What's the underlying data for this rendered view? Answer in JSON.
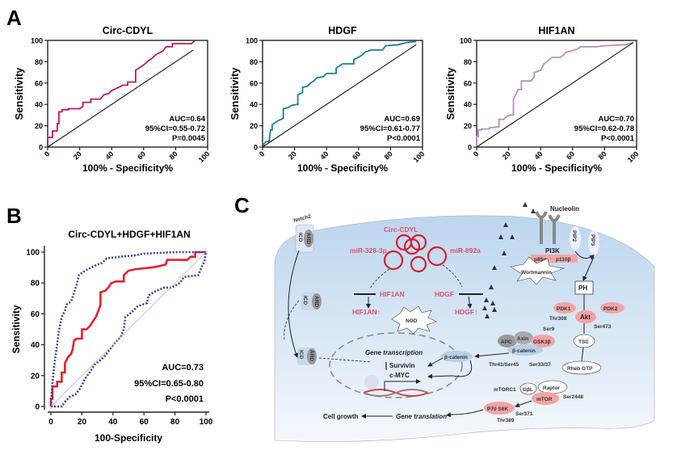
{
  "panel_labels": {
    "a": "A",
    "b": "B",
    "c": "C"
  },
  "chart_data": [
    {
      "type": "line",
      "title": "Circ-CDYL",
      "xlabel": "100% - Specificity%",
      "ylabel": "Sensitivity",
      "xlim": [
        0,
        100
      ],
      "ylim": [
        0,
        100
      ],
      "xticks": [
        "0",
        "20",
        "40",
        "60",
        "80",
        "100"
      ],
      "yticks": [
        "0",
        "20",
        "40",
        "60",
        "80",
        "100"
      ],
      "stats": [
        "AUC=0.64",
        "95%CI=0.55-0.72",
        "P=0.0045"
      ],
      "color": "#c2185b",
      "series": [
        {
          "style": "step",
          "points": [
            [
              0,
              0
            ],
            [
              0,
              9
            ],
            [
              3,
              9
            ],
            [
              3,
              15
            ],
            [
              6,
              15
            ],
            [
              6,
              22
            ],
            [
              7,
              22
            ],
            [
              7,
              33
            ],
            [
              9,
              33
            ],
            [
              9,
              35
            ],
            [
              13,
              35
            ],
            [
              13,
              36
            ],
            [
              20,
              36
            ],
            [
              22,
              38
            ],
            [
              22,
              42
            ],
            [
              27,
              42
            ],
            [
              27,
              45
            ],
            [
              33,
              45
            ],
            [
              35,
              49
            ],
            [
              38,
              50
            ],
            [
              40,
              53
            ],
            [
              43,
              55
            ],
            [
              47,
              58
            ],
            [
              50,
              58
            ],
            [
              50,
              61
            ],
            [
              55,
              61
            ],
            [
              55,
              72
            ],
            [
              57,
              74
            ],
            [
              60,
              77
            ],
            [
              63,
              81
            ],
            [
              65,
              83
            ],
            [
              68,
              87
            ],
            [
              72,
              90
            ],
            [
              74,
              94
            ],
            [
              78,
              94
            ],
            [
              78,
              97
            ],
            [
              90,
              97
            ],
            [
              92,
              100
            ]
          ]
        },
        {
          "style": "reference",
          "points": [
            [
              0,
              0
            ],
            [
              91,
              91
            ]
          ]
        }
      ]
    },
    {
      "type": "line",
      "title": "HDGF",
      "xlabel": "100% - Specificity%",
      "ylabel": "Sensitivity",
      "xlim": [
        0,
        100
      ],
      "ylim": [
        0,
        100
      ],
      "xticks": [
        "0",
        "20",
        "40",
        "60",
        "80",
        "100"
      ],
      "yticks": [
        "0",
        "20",
        "40",
        "60",
        "80",
        "100"
      ],
      "stats": [
        "AUC=0.69",
        "95%CI=0.61-0.77",
        "P<0.0001"
      ],
      "color": "#1a7f96",
      "series": [
        {
          "style": "step",
          "points": [
            [
              0,
              0
            ],
            [
              1,
              3
            ],
            [
              2,
              5
            ],
            [
              4,
              5
            ],
            [
              5,
              16
            ],
            [
              6,
              16
            ],
            [
              6,
              21
            ],
            [
              8,
              23
            ],
            [
              10,
              25
            ],
            [
              13,
              27
            ],
            [
              13,
              36
            ],
            [
              16,
              37
            ],
            [
              18,
              39
            ],
            [
              22,
              40
            ],
            [
              22,
              49
            ],
            [
              25,
              51
            ],
            [
              25,
              56
            ],
            [
              28,
              57
            ],
            [
              30,
              60
            ],
            [
              32,
              62
            ],
            [
              34,
              65
            ],
            [
              38,
              66
            ],
            [
              40,
              69
            ],
            [
              46,
              69
            ],
            [
              46,
              74
            ],
            [
              50,
              78
            ],
            [
              57,
              78
            ],
            [
              57,
              82
            ],
            [
              62,
              86
            ],
            [
              64,
              89
            ],
            [
              68,
              91
            ],
            [
              75,
              91
            ],
            [
              77,
              95
            ],
            [
              85,
              96
            ],
            [
              90,
              98
            ],
            [
              96,
              99
            ]
          ]
        },
        {
          "style": "reference",
          "points": [
            [
              0,
              0
            ],
            [
              96,
              96
            ]
          ]
        }
      ]
    },
    {
      "type": "line",
      "title": "HIF1AN",
      "xlabel": "100% - Specificity%",
      "ylabel": "Sensitivity",
      "xlim": [
        0,
        100
      ],
      "ylim": [
        0,
        100
      ],
      "xticks": [
        "0",
        "20",
        "40",
        "60",
        "80",
        "100"
      ],
      "yticks": [
        "0",
        "20",
        "40",
        "60",
        "80",
        "100"
      ],
      "stats": [
        "AUC=0.70",
        "95%CI=0.62-0.78",
        "P<0.0001"
      ],
      "color": "#b58fc0",
      "series": [
        {
          "style": "step",
          "points": [
            [
              0,
              0
            ],
            [
              0,
              10
            ],
            [
              1,
              10
            ],
            [
              1,
              16
            ],
            [
              3,
              16
            ],
            [
              3,
              17
            ],
            [
              8,
              17
            ],
            [
              8,
              18
            ],
            [
              14,
              19
            ],
            [
              14,
              26
            ],
            [
              17,
              26
            ],
            [
              19,
              29
            ],
            [
              21,
              30
            ],
            [
              23,
              30
            ],
            [
              23,
              45
            ],
            [
              25,
              51
            ],
            [
              26,
              54
            ],
            [
              28,
              54
            ],
            [
              28,
              62
            ],
            [
              34,
              62
            ],
            [
              36,
              66
            ],
            [
              36,
              70
            ],
            [
              40,
              72
            ],
            [
              42,
              78
            ],
            [
              44,
              80
            ],
            [
              47,
              84
            ],
            [
              52,
              84
            ],
            [
              54,
              86
            ],
            [
              56,
              89
            ],
            [
              59,
              90
            ],
            [
              63,
              92
            ],
            [
              65,
              94
            ],
            [
              75,
              94
            ],
            [
              80,
              95
            ],
            [
              93,
              96
            ],
            [
              98,
              98
            ]
          ]
        },
        {
          "style": "reference",
          "points": [
            [
              0,
              0
            ],
            [
              98,
              98
            ]
          ]
        }
      ]
    },
    {
      "type": "line",
      "title": "Circ-CDYL+HDGF+HIF1AN",
      "xlabel": "100-Specificity",
      "ylabel": "Sensitivity",
      "xlim": [
        0,
        100
      ],
      "ylim": [
        0,
        100
      ],
      "xticks": [
        "0",
        "20",
        "40",
        "60",
        "80",
        "100"
      ],
      "yticks": [
        "0",
        "20",
        "40",
        "60",
        "80",
        "100"
      ],
      "stats": [
        "AUC=0.73",
        "95%CI=0.65-0.80",
        "P<0.0001"
      ],
      "color": "#e8202a",
      "ci_color": "#3b3fa0",
      "series": [
        {
          "style": "step",
          "points": [
            [
              0,
              0
            ],
            [
              0,
              5
            ],
            [
              1,
              5
            ],
            [
              1,
              13
            ],
            [
              4,
              13
            ],
            [
              4,
              16
            ],
            [
              7,
              16
            ],
            [
              7,
              22
            ],
            [
              9,
              22
            ],
            [
              9,
              28
            ],
            [
              11,
              32
            ],
            [
              13,
              34
            ],
            [
              14,
              37
            ],
            [
              15,
              43
            ],
            [
              17,
              44
            ],
            [
              20,
              44
            ],
            [
              20,
              50
            ],
            [
              23,
              50
            ],
            [
              25,
              52
            ],
            [
              27,
              55
            ],
            [
              29,
              58
            ],
            [
              31,
              63
            ],
            [
              32,
              66
            ],
            [
              32,
              74
            ],
            [
              35,
              75
            ],
            [
              37,
              77
            ],
            [
              39,
              80
            ],
            [
              42,
              81
            ],
            [
              47,
              81
            ],
            [
              47,
              85
            ],
            [
              50,
              88
            ],
            [
              55,
              89
            ],
            [
              65,
              90
            ],
            [
              70,
              91
            ],
            [
              74,
              92
            ],
            [
              75,
              95
            ],
            [
              88,
              95
            ],
            [
              90,
              97
            ],
            [
              93,
              97
            ],
            [
              93,
              100
            ],
            [
              100,
              100
            ]
          ]
        },
        {
          "style": "ci-upper",
          "points": [
            [
              0,
              0
            ],
            [
              1,
              15
            ],
            [
              2,
              25
            ],
            [
              3,
              33
            ],
            [
              4,
              40
            ],
            [
              5,
              48
            ],
            [
              7,
              58
            ],
            [
              9,
              62
            ],
            [
              10,
              66
            ],
            [
              13,
              68
            ],
            [
              15,
              74
            ],
            [
              17,
              80
            ],
            [
              18,
              85
            ],
            [
              22,
              88
            ],
            [
              26,
              90
            ],
            [
              30,
              92
            ],
            [
              33,
              93
            ],
            [
              36,
              96
            ],
            [
              45,
              97
            ],
            [
              55,
              98
            ],
            [
              60,
              99
            ],
            [
              80,
              100
            ],
            [
              100,
              100
            ]
          ]
        },
        {
          "style": "ci-lower",
          "points": [
            [
              0,
              0
            ],
            [
              3,
              0
            ],
            [
              7,
              0
            ],
            [
              9,
              3
            ],
            [
              12,
              6
            ],
            [
              16,
              8
            ],
            [
              19,
              12
            ],
            [
              22,
              18
            ],
            [
              25,
              22
            ],
            [
              28,
              27
            ],
            [
              32,
              30
            ],
            [
              35,
              33
            ],
            [
              38,
              37
            ],
            [
              42,
              42
            ],
            [
              45,
              45
            ],
            [
              47,
              50
            ],
            [
              48,
              58
            ],
            [
              52,
              61
            ],
            [
              56,
              65
            ],
            [
              62,
              67
            ],
            [
              63,
              72
            ],
            [
              68,
              75
            ],
            [
              73,
              77
            ],
            [
              78,
              77
            ],
            [
              83,
              80
            ],
            [
              86,
              84
            ],
            [
              95,
              85
            ],
            [
              97,
              90
            ],
            [
              99,
              94
            ],
            [
              100,
              100
            ]
          ]
        },
        {
          "style": "reference",
          "points": [
            [
              0,
              0
            ],
            [
              100,
              100
            ]
          ]
        }
      ]
    }
  ],
  "diagram": {
    "notch2": "Notch2",
    "icd": "ICD",
    "ard": "ARD",
    "circ_cdyl": "Circ-CDYL",
    "mir328": "miR-328-3p",
    "mir892": "miR-892a",
    "hif1an": "HIF1AN",
    "hdgf": "HDGF",
    "hif1an_up": "HIF1AN↑",
    "hdgf_up": "HDGF↑",
    "nod": "NOD",
    "gene_transcription": "Gene transcription",
    "survivin": "Survivin",
    "cmyc": "c-MYC",
    "cell_growth": "Cell growth",
    "gene_translation": "Gene translation",
    "nucleolin": "Nucleolin",
    "pi3k": "PI3K",
    "p85": "p85α",
    "p110": "p110β",
    "pip2": "PIP2",
    "pip3": "PIP3",
    "wortmannin": "Wortmannin",
    "ph": "PH",
    "pdk1": "PDK1",
    "pdk2": "PDK2",
    "akt": "Akt",
    "thr308": "Thr308",
    "ser473": "Ser473",
    "ser9": "Ser9",
    "apc": "APC",
    "axin": "Axin",
    "gsk3b": "GSK3β",
    "bcatenin": "β-catenin",
    "thr41": "Thr41/Ser45",
    "ser33": "Ser33/37",
    "tsc": "TSC",
    "rheb": "Rheb GTP",
    "mtorc1": "mTORC1",
    "gbl": "GβL",
    "raptor": "Raptor",
    "mtor": "mTOR",
    "ser2448": "Ser2448",
    "p70": "P70 S6K",
    "ser371": "Ser371",
    "thr389": "Thr389",
    "colors": {
      "cell": "#cfe0f0",
      "red_text": "#e0506a",
      "pink": "#f2a3a3",
      "blue": "#b8cfe8"
    }
  }
}
